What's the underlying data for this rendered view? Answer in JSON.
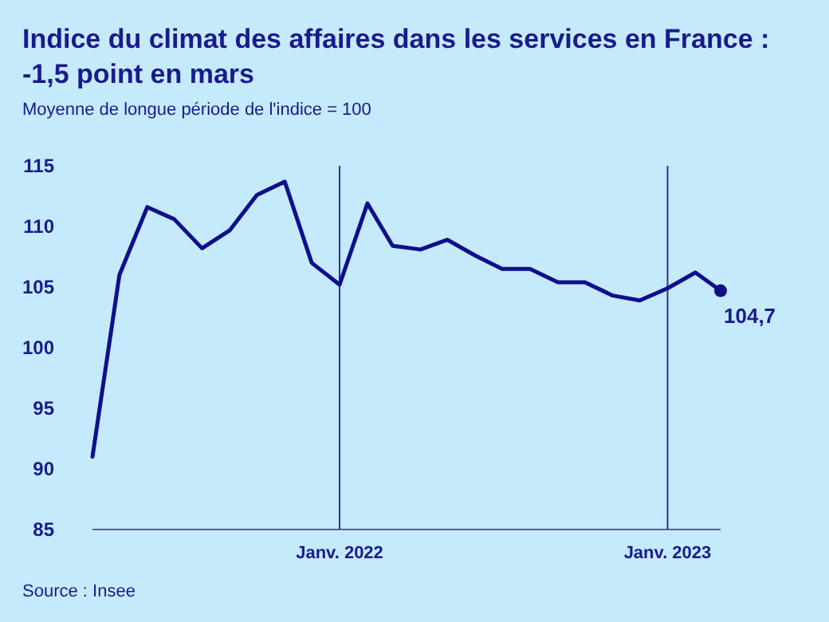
{
  "chart_data": {
    "type": "line",
    "title": "Indice du climat des affaires dans les services en France : -1,5 point en mars",
    "subtitle": "Moyenne de longue période de l'indice = 100",
    "x": [
      "2021-04",
      "2021-05",
      "2021-06",
      "2021-07",
      "2021-08",
      "2021-09",
      "2021-10",
      "2021-11",
      "2021-12",
      "2022-01",
      "2022-02",
      "2022-03",
      "2022-04",
      "2022-05",
      "2022-06",
      "2022-07",
      "2022-08",
      "2022-09",
      "2022-10",
      "2022-11",
      "2022-12",
      "2023-01",
      "2023-02",
      "2023-03"
    ],
    "series": [
      {
        "color": "#0f0f8c",
        "values": [
          91,
          106,
          111.6,
          110.6,
          108.2,
          109.7,
          112.6,
          113.7,
          107,
          105.2,
          111.9,
          108.4,
          108.1,
          108.9,
          107.6,
          106.5,
          106.5,
          105.4,
          105.4,
          104.3,
          103.9,
          104.9,
          106.2,
          104.7
        ],
        "value_labels": [
          null,
          null,
          null,
          null,
          null,
          null,
          null,
          null,
          null,
          null,
          null,
          null,
          null,
          null,
          null,
          null,
          null,
          null,
          null,
          null,
          null,
          null,
          null,
          "104,7"
        ]
      }
    ],
    "xlim": [
      "2021-04",
      "2023-03"
    ],
    "xticks": [
      {
        "value": "2022-01",
        "label": "Janv. 2022"
      },
      {
        "value": "2023-01",
        "label": "Janv. 2023"
      }
    ],
    "ylim": [
      85,
      115
    ],
    "yticks": [
      85,
      90,
      95,
      100,
      105,
      110,
      115
    ],
    "grid": "x",
    "line_style": "solid",
    "annotations": [
      "Source : Insee"
    ]
  }
}
